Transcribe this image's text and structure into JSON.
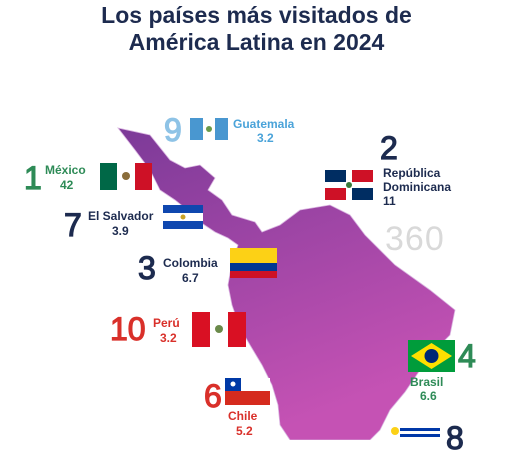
{
  "title": [
    "Los países más visitados de",
    "América Latina en 2024"
  ],
  "watermark": "360",
  "countries": [
    {
      "rank": 9,
      "name": "Guatemala",
      "value": 3.2
    },
    {
      "rank": 1,
      "name": "México",
      "value": 42
    },
    {
      "rank": 2,
      "name": "República Dominicana",
      "value": 11
    },
    {
      "rank": 7,
      "name": "El Salvador",
      "value": 3.9
    },
    {
      "rank": 3,
      "name": "Colombia",
      "value": 6.7
    },
    {
      "rank": 10,
      "name": "Perú",
      "value": 3.2
    },
    {
      "rank": 6,
      "name": "Chile",
      "value": 5.2
    },
    {
      "rank": 4,
      "name": "Brasil",
      "value": 6.6
    },
    {
      "rank": 8
    }
  ]
}
